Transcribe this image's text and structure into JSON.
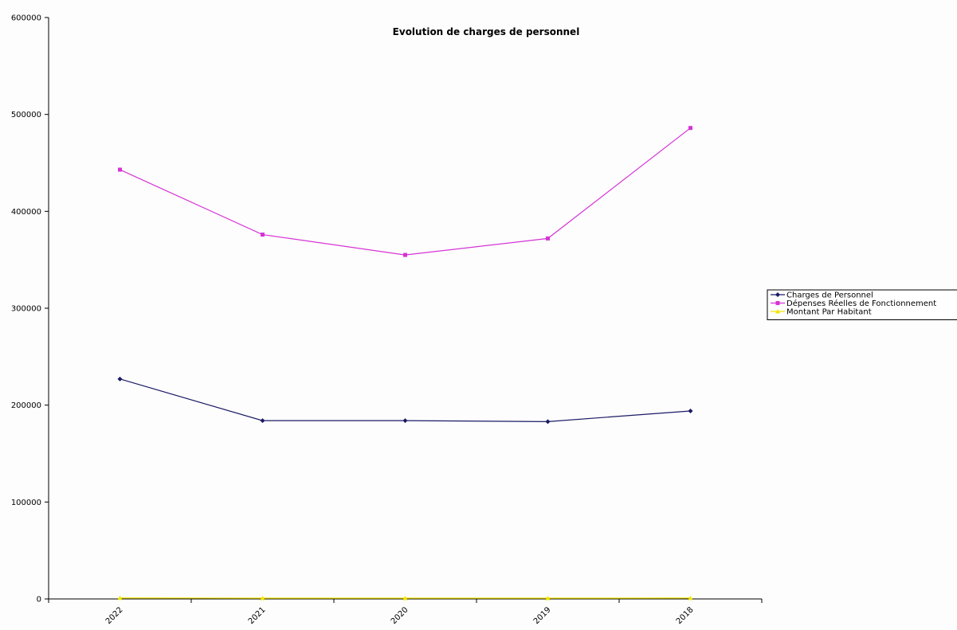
{
  "chart_data": {
    "type": "line",
    "title": "Evolution de charges de personnel",
    "xlabel": "",
    "ylabel": "",
    "categories": [
      "2022",
      "2021",
      "2020",
      "2019",
      "2018"
    ],
    "ylim": [
      0,
      600000
    ],
    "yticks": [
      0,
      100000,
      200000,
      300000,
      400000,
      500000,
      600000
    ],
    "grid": false,
    "legend_position": "right",
    "series": [
      {
        "name": "Charges de Personnel",
        "color": "#1a1a66",
        "marker": "diamond",
        "values": [
          227000,
          184000,
          184000,
          183000,
          194000
        ]
      },
      {
        "name": "Dépenses Réelles de Fonctionnement",
        "color": "#d633d6",
        "marker": "square",
        "values": [
          443000,
          376000,
          355000,
          372000,
          486000
        ]
      },
      {
        "name": "Montant Par Habitant",
        "color": "#f2e600",
        "marker": "triangle",
        "values": [
          1000,
          800,
          800,
          800,
          900
        ]
      }
    ]
  }
}
